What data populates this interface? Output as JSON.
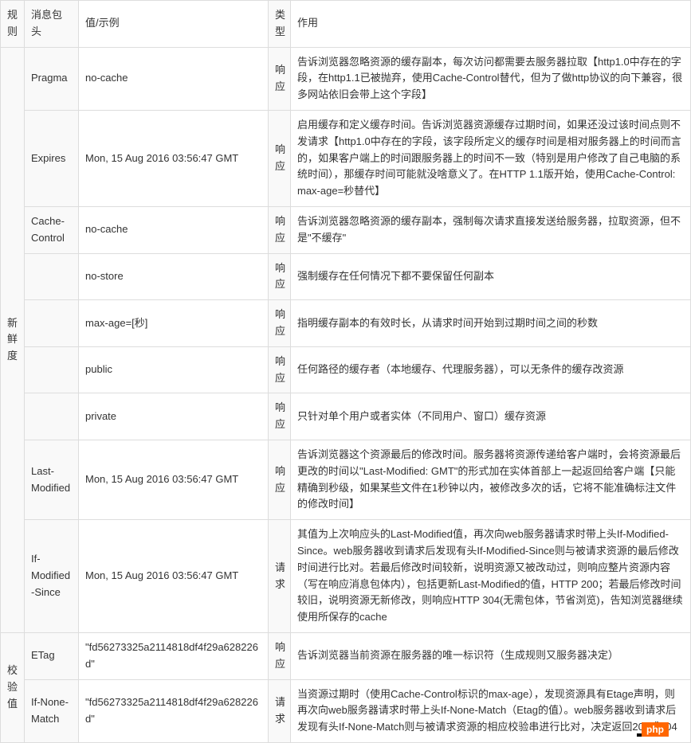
{
  "headers": {
    "rule": "规则",
    "messageHeader": "消息包头",
    "valueExample": "值/示例",
    "type": "类型",
    "purpose": "作用"
  },
  "ruleGroups": {
    "freshness": "新鲜度",
    "validate": "校验值"
  },
  "rows": [
    {
      "header": "Pragma",
      "value": "no-cache",
      "type": "响应",
      "desc": "告诉浏览器忽略资源的缓存副本，每次访问都需要去服务器拉取【http1.0中存在的字段，在http1.1已被抛弃，使用Cache-Control替代，但为了做http协议的向下兼容，很多网站依旧会带上这个字段】"
    },
    {
      "header": "Expires",
      "value": " Mon, 15 Aug 2016 03:56:47 GMT",
      "type": "响应",
      "desc": "启用缓存和定义缓存时间。告诉浏览器资源缓存过期时间，如果还没过该时间点则不发请求【http1.0中存在的字段，该字段所定义的缓存时间是相对服务器上的时间而言的，如果客户端上的时间跟服务器上的时间不一致（特别是用户修改了自己电脑的系统时间），那缓存时间可能就没啥意义了。在HTTP 1.1版开始，使用Cache-Control: max-age=秒替代】"
    },
    {
      "header": "Cache-Control",
      "value": "no-cache",
      "type": "响应",
      "desc": "告诉浏览器忽略资源的缓存副本，强制每次请求直接发送给服务器，拉取资源，但不是\"不缓存\""
    },
    {
      "header": "",
      "value": "no-store",
      "type": "响应",
      "desc": "强制缓存在任何情况下都不要保留任何副本"
    },
    {
      "header": "",
      "value": "max-age=[秒]",
      "type": "响应",
      "desc": "指明缓存副本的有效时长，从请求时间开始到过期时间之间的秒数"
    },
    {
      "header": "",
      "value": "public",
      "type": "响应",
      "desc": "任何路径的缓存者（本地缓存、代理服务器），可以无条件的缓存改资源"
    },
    {
      "header": "",
      "value": "private",
      "type": "响应",
      "desc": "只针对单个用户或者实体（不同用户、窗口）缓存资源"
    },
    {
      "header": "Last-Modified",
      "value": "Mon, 15 Aug 2016 03:56:47 GMT",
      "type": "响应",
      "desc": "告诉浏览器这个资源最后的修改时间。服务器将资源传递给客户端时，会将资源最后更改的时间以\"Last-Modified: GMT\"的形式加在实体首部上一起返回给客户端【只能精确到秒级，如果某些文件在1秒钟以内，被修改多次的话，它将不能准确标注文件的修改时间】"
    },
    {
      "header": "If-Modified-Since",
      "value": "Mon, 15 Aug 2016 03:56:47 GMT",
      "type": "请求",
      "desc": "其值为上次响应头的Last-Modified值，再次向web服务器请求时带上头If-Modified-Since。web服务器收到请求后发现有头If-Modified-Since则与被请求资源的最后修改时间进行比对。若最后修改时间较新，说明资源又被改动过，则响应整片资源内容（写在响应消息包体内），包括更新Last-Modified的值，HTTP 200；若最后修改时间较旧，说明资源无新修改，则响应HTTP 304(无需包体，节省浏览)，告知浏览器继续使用所保存的cache"
    },
    {
      "header": "ETag",
      "value": "\"fd56273325a2114818df4f29a628226d\"",
      "type": "响应",
      "desc": "告诉浏览器当前资源在服务器的唯一标识符（生成规则又服务器决定）"
    },
    {
      "header": "If-None-Match",
      "value": "\"fd56273325a2114818df4f29a628226d\"",
      "type": "请求",
      "desc": "当资源过期时（使用Cache-Control标识的max-age），发现资源具有Etage声明，则再次向web服务器请求时带上头If-None-Match（Etag的值）。web服务器收到请求后发现有头If-None-Match则与被请求资源的相应校验串进行比对，决定返回200或304"
    }
  ],
  "watermark": {
    "dark": "",
    "php": "php"
  },
  "styling": {
    "border_color": "#dddddd",
    "shaded_bg": "#f9f9f9",
    "text_color": "#333333",
    "font_size": 13,
    "watermark_dark_bg": "#000000",
    "watermark_php_bg": "#ff6600",
    "watermark_text_color": "#ffffff"
  }
}
